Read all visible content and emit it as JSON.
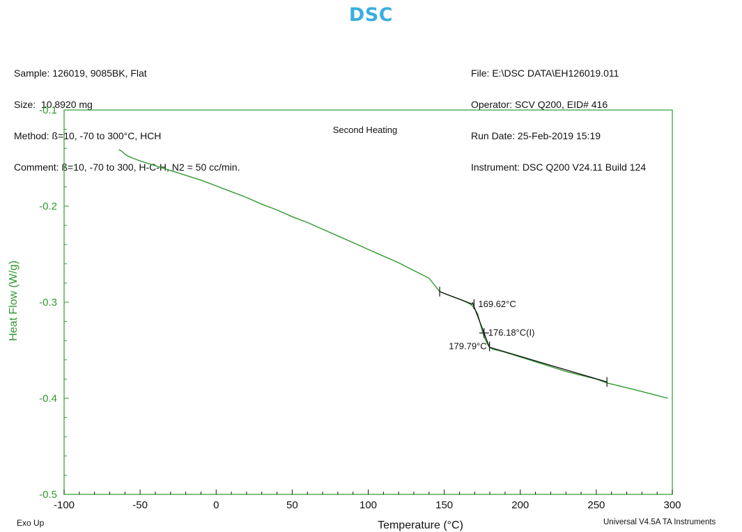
{
  "header": {
    "title": "DSC"
  },
  "meta": {
    "left": [
      "Sample: 126019, 9085BK, Flat",
      "Size:  10.8920 mg",
      "Method: ß=10, -70 to 300°C, HCH",
      "Comment: ß=10, -70 to 300, H-C-H, N2 = 50 cc/min."
    ],
    "right": [
      "File: E:\\DSC DATA\\EH126019.011",
      "Operator: SCV Q200, EID# 416",
      "Run Date: 25-Feb-2019 15:19",
      "Instrument: DSC Q200 V24.11 Build 124"
    ]
  },
  "footer": {
    "exo_label": "Exo Up",
    "software": "Universal V4.5A TA Instruments"
  },
  "chart_data": {
    "type": "line",
    "annotation": "Second Heating",
    "xlabel": "Temperature (°C)",
    "ylabel": "Heat Flow (W/g)",
    "xlim": [
      -100,
      300
    ],
    "ylim": [
      -0.5,
      -0.1
    ],
    "xticks": [
      -100,
      -50,
      0,
      50,
      100,
      150,
      200,
      250,
      300
    ],
    "yticks": [
      -0.5,
      -0.4,
      -0.3,
      -0.2,
      -0.1
    ],
    "xtick_labels": [
      "-100",
      "-50",
      "0",
      "50",
      "100",
      "150",
      "200",
      "250",
      "300"
    ],
    "ytick_labels": [
      "-0.5",
      "-0.4",
      "-0.3",
      "-0.2",
      "-0.1"
    ],
    "grid": false,
    "colors": {
      "curve": "#2e9a2e",
      "axis": "#2e9a2e",
      "analysis": "#111111"
    },
    "series": [
      {
        "x": [
          -64,
          -62,
          -60,
          -58,
          -55,
          -50,
          -40,
          -30,
          -20,
          -10,
          0,
          10,
          20,
          30,
          40,
          50,
          60,
          70,
          80,
          90,
          100,
          110,
          120,
          130,
          140,
          147,
          155,
          162,
          166,
          168,
          170,
          172,
          173,
          174,
          175,
          176,
          177,
          178,
          179,
          180,
          182,
          185,
          190,
          200,
          210,
          220,
          230,
          240,
          250,
          257,
          270,
          280,
          290,
          297
        ],
        "y": [
          -0.141,
          -0.143,
          -0.146,
          -0.148,
          -0.15,
          -0.153,
          -0.158,
          -0.163,
          -0.168,
          -0.173,
          -0.179,
          -0.185,
          -0.191,
          -0.198,
          -0.204,
          -0.211,
          -0.217,
          -0.224,
          -0.231,
          -0.238,
          -0.245,
          -0.252,
          -0.259,
          -0.267,
          -0.275,
          -0.289,
          -0.294,
          -0.298,
          -0.301,
          -0.303,
          -0.307,
          -0.312,
          -0.318,
          -0.324,
          -0.33,
          -0.335,
          -0.339,
          -0.342,
          -0.345,
          -0.347,
          -0.349,
          -0.35,
          -0.352,
          -0.357,
          -0.362,
          -0.367,
          -0.372,
          -0.376,
          -0.38,
          -0.384,
          -0.389,
          -0.393,
          -0.397,
          -0.4
        ]
      }
    ],
    "tangent_lines": [
      {
        "x": [
          147,
          168.5
        ],
        "y": [
          -0.289,
          -0.302
        ]
      },
      {
        "x": [
          168.5,
          180
        ],
        "y": [
          -0.3,
          -0.348
        ]
      },
      {
        "x": [
          180,
          257
        ],
        "y": [
          -0.347,
          -0.383
        ]
      }
    ],
    "markers": [
      {
        "x": 147,
        "y": -0.289
      },
      {
        "x": 169.6,
        "y": -0.302
      },
      {
        "x": 176.2,
        "y": -0.332
      },
      {
        "x": 179.8,
        "y": -0.346
      },
      {
        "x": 257,
        "y": -0.383
      }
    ],
    "labels": [
      {
        "text": "169.62°C",
        "x": 169.6,
        "y": -0.302,
        "anchor": "start"
      },
      {
        "text": "176.18°C(I)",
        "x": 176.2,
        "y": -0.332,
        "anchor": "start"
      },
      {
        "text": "179.79°C",
        "x": 179.8,
        "y": -0.346,
        "anchor": "end"
      }
    ]
  }
}
